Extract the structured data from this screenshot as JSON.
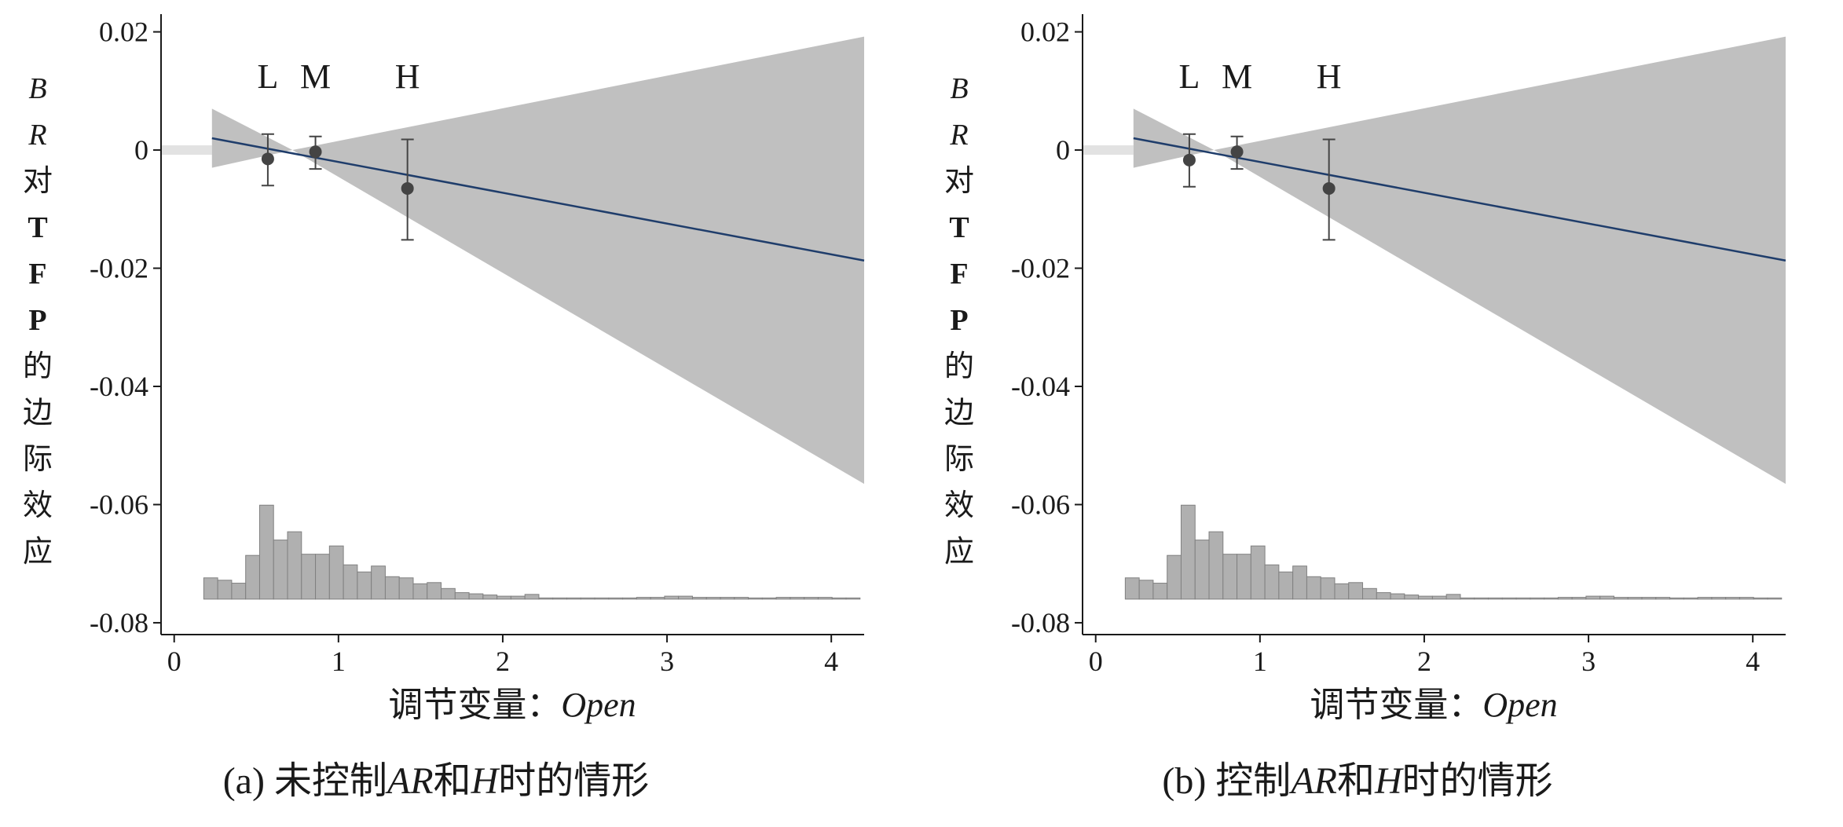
{
  "colors": {
    "ci_band": "#c0c0c0",
    "fit_line": "#1f3d6b",
    "hist_bar": "#b0b0b0",
    "hist_edge": "#808080",
    "point": "#444444",
    "zero_ref": "#e2e2e2"
  },
  "chart_data": [
    {
      "type": "line",
      "panel_id": "a",
      "caption": {
        "prefix": "(a) 未控制",
        "ar": "AR",
        "mid": "和",
        "h": "H",
        "suffix": "时的情形"
      },
      "xlabel": {
        "text": "调节变量：",
        "var": "Open"
      },
      "ylabel": {
        "lines": [
          "B",
          "R",
          "对",
          "T",
          "F",
          "P",
          "的",
          "边",
          "际",
          "效",
          "应"
        ]
      },
      "xlim": [
        -0.08,
        4.2
      ],
      "ylim": [
        -0.082,
        0.023
      ],
      "x_ticks": [
        0,
        1,
        2,
        3,
        4
      ],
      "y_ticks": [
        0.02,
        0,
        -0.02,
        -0.04,
        -0.06,
        -0.08
      ],
      "y_tick_labels": [
        "0.02",
        "0",
        "-0.02",
        "-0.04",
        "-0.06",
        "-0.08"
      ],
      "fit_line": {
        "x": [
          0.23,
          4.2
        ],
        "y": [
          0.002,
          -0.0187
        ]
      },
      "ci_band": {
        "x": [
          0.23,
          0.72,
          4.2
        ],
        "upper": [
          0.007,
          0.0,
          0.0192
        ],
        "lower": [
          -0.003,
          0.0,
          -0.0565
        ]
      },
      "zero_ref": {
        "x": [
          -0.08,
          0.23
        ],
        "y": 0
      },
      "points": [
        {
          "label": "L",
          "x": 0.57,
          "y": -0.0015,
          "lo": -0.006,
          "hi": 0.0027
        },
        {
          "label": "M",
          "x": 0.86,
          "y": -0.0003,
          "lo": -0.0032,
          "hi": 0.0023
        },
        {
          "label": "H",
          "x": 1.42,
          "y": -0.0065,
          "lo": -0.0152,
          "hi": 0.0018
        }
      ],
      "histogram": {
        "x_start": 0.18,
        "bin_width": 0.085,
        "base": -0.076,
        "tops": [
          -0.0724,
          -0.0728,
          -0.0733,
          -0.0686,
          -0.0601,
          -0.066,
          -0.0646,
          -0.0684,
          -0.0684,
          -0.067,
          -0.0702,
          -0.0714,
          -0.0704,
          -0.0722,
          -0.0724,
          -0.0734,
          -0.0732,
          -0.0742,
          -0.0749,
          -0.0751,
          -0.0753,
          -0.0755,
          -0.0755,
          -0.0752,
          -0.0758,
          -0.0758,
          -0.0758,
          -0.0758,
          -0.0758,
          -0.0758,
          -0.0758,
          -0.0757,
          -0.0757,
          -0.0755,
          -0.0755,
          -0.0757,
          -0.0757,
          -0.0757,
          -0.0757,
          -0.0758,
          -0.0758,
          -0.0757,
          -0.0757,
          -0.0757,
          -0.0757,
          -0.0758,
          -0.0758,
          -0.0758,
          -0.0758
        ]
      }
    },
    {
      "type": "line",
      "panel_id": "b",
      "caption": {
        "prefix": "(b) 控制",
        "ar": "AR",
        "mid": "和",
        "h": "H",
        "suffix": "时的情形"
      },
      "xlabel": {
        "text": "调节变量：",
        "var": "Open"
      },
      "ylabel": {
        "lines": [
          "B",
          "R",
          "对",
          "T",
          "F",
          "P",
          "的",
          "边",
          "际",
          "效",
          "应"
        ]
      },
      "xlim": [
        -0.08,
        4.2
      ],
      "ylim": [
        -0.082,
        0.023
      ],
      "x_ticks": [
        0,
        1,
        2,
        3,
        4
      ],
      "y_ticks": [
        0.02,
        0,
        -0.02,
        -0.04,
        -0.06,
        -0.08
      ],
      "y_tick_labels": [
        "0.02",
        "0",
        "-0.02",
        "-0.04",
        "-0.06",
        "-0.08"
      ],
      "fit_line": {
        "x": [
          0.23,
          4.2
        ],
        "y": [
          0.002,
          -0.0187
        ]
      },
      "ci_band": {
        "x": [
          0.23,
          0.72,
          4.2
        ],
        "upper": [
          0.007,
          0.0,
          0.0192
        ],
        "lower": [
          -0.003,
          0.0,
          -0.0565
        ]
      },
      "zero_ref": {
        "x": [
          -0.08,
          0.23
        ],
        "y": 0
      },
      "points": [
        {
          "label": "L",
          "x": 0.57,
          "y": -0.0017,
          "lo": -0.0062,
          "hi": 0.0027
        },
        {
          "label": "M",
          "x": 0.86,
          "y": -0.0003,
          "lo": -0.0032,
          "hi": 0.0023
        },
        {
          "label": "H",
          "x": 1.42,
          "y": -0.0065,
          "lo": -0.0152,
          "hi": 0.0018
        }
      ],
      "histogram": {
        "x_start": 0.18,
        "bin_width": 0.085,
        "base": -0.076,
        "tops": [
          -0.0724,
          -0.0728,
          -0.0733,
          -0.0686,
          -0.0601,
          -0.066,
          -0.0646,
          -0.0684,
          -0.0684,
          -0.067,
          -0.0702,
          -0.0714,
          -0.0704,
          -0.0722,
          -0.0724,
          -0.0734,
          -0.0732,
          -0.0742,
          -0.0749,
          -0.0751,
          -0.0753,
          -0.0755,
          -0.0755,
          -0.0752,
          -0.0758,
          -0.0758,
          -0.0758,
          -0.0758,
          -0.0758,
          -0.0758,
          -0.0758,
          -0.0757,
          -0.0757,
          -0.0755,
          -0.0755,
          -0.0757,
          -0.0757,
          -0.0757,
          -0.0757,
          -0.0758,
          -0.0758,
          -0.0757,
          -0.0757,
          -0.0757,
          -0.0757,
          -0.0758,
          -0.0758,
          -0.0758,
          -0.0758
        ]
      }
    }
  ]
}
